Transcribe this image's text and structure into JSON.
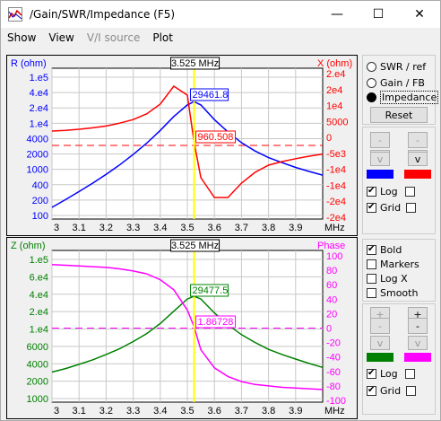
{
  "window": {
    "title": "/Gain/SWR/Impedance (F5)",
    "minimize": "—",
    "maximize": "☐",
    "close": "✕"
  },
  "menu": [
    "Show",
    "View",
    "V/I source",
    "Plot"
  ],
  "colors": {
    "blue": "#0000ff",
    "red": "#ff0000",
    "green": "#008000",
    "magenta": "#ff00ff",
    "cursor": "#ffff00"
  },
  "top_plot": {
    "left_label": "R (ohm)",
    "right_label": "X (ohm)",
    "cursor_label": "3.525 MHz",
    "r_value": "29461.8",
    "x_value": "960.508",
    "left_ticks": [
      "1.e5",
      "4.e4",
      "2.e4",
      "1.e4",
      "4000",
      "2000",
      "1000",
      "400",
      "200",
      "100"
    ],
    "right_ticks": [
      "2.e4",
      "2e4",
      "1e4",
      "5000",
      "0",
      "-5e3",
      "-1e4",
      "-1e4",
      "-2e4",
      "-2e4"
    ],
    "x_ticks": [
      "3",
      "3.1",
      "3.2",
      "3.3",
      "3.4",
      "3.5",
      "3.6",
      "3.7",
      "3.8",
      "3.9"
    ],
    "x_unit": "MHz"
  },
  "bottom_plot": {
    "left_label": "Z (ohm)",
    "right_label": "Phase",
    "cursor_label": "3.525 MHz",
    "z_value": "29477.5",
    "phase_value": "1.86728",
    "left_ticks": [
      "1.e5",
      "6.e4",
      "4.e4",
      "2.e4",
      "1.e4",
      "6000",
      "4000",
      "2000",
      "1000"
    ],
    "right_ticks": [
      "100",
      "80",
      "60",
      "40",
      "20",
      "0",
      "-20",
      "-40",
      "-60",
      "-80",
      "-100"
    ],
    "x_ticks": [
      "3",
      "3.1",
      "3.2",
      "3.3",
      "3.4",
      "3.5",
      "3.6",
      "3.7",
      "3.8",
      "3.9"
    ],
    "x_unit": "MHz"
  },
  "right_panel_top": {
    "radio_swr": "SWR / ref",
    "radio_gain": "Gain / FB",
    "radio_impedance": "Impedance",
    "reset": "Reset",
    "minus": "-",
    "plus": "+",
    "v": "v",
    "log": "Log",
    "grid": "Grid"
  },
  "right_panel_bottom": {
    "bold": "Bold",
    "markers": "Markers",
    "logx": "Log X",
    "smooth": "Smooth",
    "minus": "-",
    "plus": "+",
    "v": "v",
    "log": "Log",
    "grid": "Grid"
  },
  "chart_data": [
    {
      "type": "line",
      "x": [
        3.0,
        3.05,
        3.1,
        3.15,
        3.2,
        3.25,
        3.3,
        3.35,
        3.4,
        3.45,
        3.5,
        3.525,
        3.55,
        3.6,
        3.65,
        3.7,
        3.75,
        3.8,
        3.85,
        3.9,
        3.95,
        4.0
      ],
      "series": [
        {
          "name": "R (ohm)",
          "values": [
            150,
            220,
            330,
            500,
            780,
            1250,
            2100,
            3700,
            7000,
            14000,
            25000,
            29461.8,
            25000,
            12000,
            6500,
            3800,
            2500,
            1800,
            1400,
            1100,
            900,
            750
          ]
        },
        {
          "name": "X (ohm)",
          "values": [
            4000,
            4200,
            4500,
            4900,
            5400,
            6200,
            7200,
            8800,
            11500,
            16500,
            14000,
            960.508,
            -9000,
            -14500,
            -14500,
            -10500,
            -7500,
            -5500,
            -4500,
            -3700,
            -3000,
            -2400
          ]
        }
      ],
      "xlim": [
        3.0,
        4.0
      ]
    },
    {
      "type": "line",
      "x": [
        3.0,
        3.05,
        3.1,
        3.15,
        3.2,
        3.25,
        3.3,
        3.35,
        3.4,
        3.45,
        3.5,
        3.525,
        3.55,
        3.6,
        3.65,
        3.7,
        3.75,
        3.8,
        3.85,
        3.9,
        3.95,
        4.0
      ],
      "series": [
        {
          "name": "Z (ohm)",
          "values": [
            2400,
            2700,
            3100,
            3600,
            4300,
            5200,
            6600,
            8600,
            12000,
            18000,
            27000,
            29477.5,
            27000,
            17000,
            11500,
            8300,
            6400,
            5100,
            4300,
            3700,
            3200,
            2800
          ]
        },
        {
          "name": "Phase",
          "values": [
            88,
            87,
            86,
            85,
            84,
            82,
            79,
            75,
            67,
            53,
            25,
            1.87,
            -30,
            -55,
            -67,
            -74,
            -78,
            -80,
            -82,
            -83,
            -84,
            -85
          ]
        }
      ],
      "xlim": [
        3.0,
        4.0
      ]
    }
  ]
}
